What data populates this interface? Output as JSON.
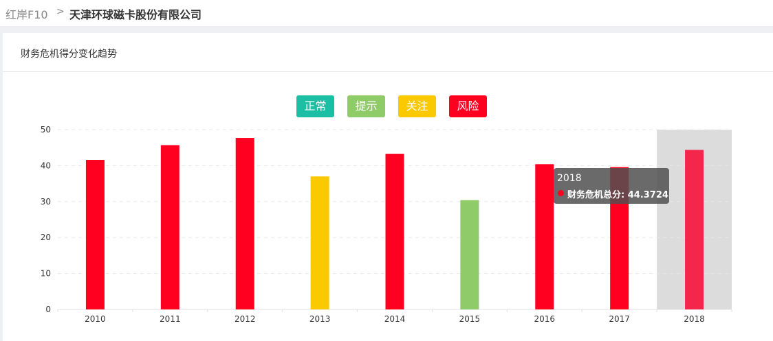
{
  "breadcrumb": {
    "root": "红岸F10",
    "separator": ">",
    "current": "天津环球磁卡股份有限公司"
  },
  "panel": {
    "title": "财务危机得分变化趋势"
  },
  "legend": {
    "items": [
      {
        "label": "正常",
        "color": "#1dbfa4"
      },
      {
        "label": "提示",
        "color": "#8fcb69"
      },
      {
        "label": "关注",
        "color": "#fbc900"
      },
      {
        "label": "风险",
        "color": "#ff0020"
      }
    ]
  },
  "tooltip": {
    "year": "2018",
    "series_label": "财务危机总分: 44.3724"
  },
  "chart_data": {
    "type": "bar",
    "title": "财务危机得分变化趋势",
    "series_name": "财务危机总分",
    "categories": [
      "2010",
      "2011",
      "2012",
      "2013",
      "2014",
      "2015",
      "2016",
      "2017",
      "2018"
    ],
    "values": [
      41.6,
      45.7,
      47.7,
      37.0,
      43.3,
      30.4,
      40.4,
      39.6,
      44.3724
    ],
    "status": [
      "风险",
      "风险",
      "风险",
      "关注",
      "风险",
      "提示",
      "风险",
      "风险",
      "风险"
    ],
    "status_colors": {
      "正常": "#1dbfa4",
      "提示": "#8fcb69",
      "关注": "#fbc900",
      "风险": "#ff0020"
    },
    "highlight_color": "#f5264c",
    "highlighted_category": "2018",
    "ylim": [
      0,
      50
    ],
    "yticks": [
      0,
      10,
      20,
      30,
      40,
      50
    ],
    "grid": true,
    "xlabel": "",
    "ylabel": ""
  }
}
